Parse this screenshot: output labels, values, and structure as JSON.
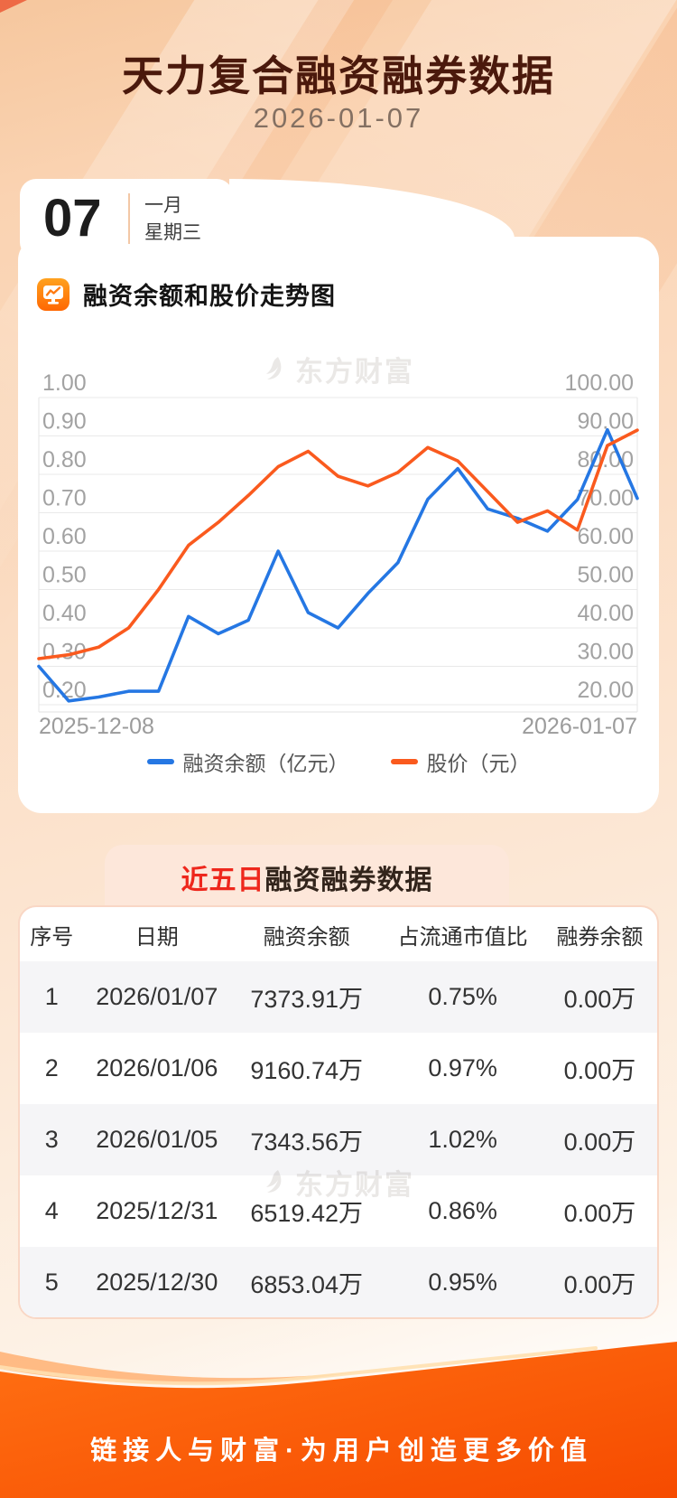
{
  "page": {
    "title": "天力复合融资融券数据",
    "date": "2026-01-07",
    "date_card": {
      "day": "07",
      "month": "一月",
      "weekday": "星期三"
    },
    "watermark": "东方财富",
    "footer": "链接人与财富·为用户创造更多价值"
  },
  "chart_section": {
    "title": "融资余额和股价走势图",
    "legend": [
      {
        "label": "融资余额（亿元）",
        "color": "#2577e3"
      },
      {
        "label": "股价（元）",
        "color": "#fa5a1e"
      }
    ]
  },
  "chart_data": {
    "type": "line",
    "x": [
      "2025-12-08",
      "2025-12-09",
      "2025-12-10",
      "2025-12-11",
      "2025-12-12",
      "2025-12-15",
      "2025-12-16",
      "2025-12-17",
      "2025-12-18",
      "2025-12-19",
      "2025-12-22",
      "2025-12-23",
      "2025-12-24",
      "2025-12-25",
      "2025-12-26",
      "2025-12-29",
      "2025-12-30",
      "2025-12-31",
      "2026-01-05",
      "2026-01-06",
      "2026-01-07"
    ],
    "x_axis_labels": [
      "2025-12-08",
      "2026-01-07"
    ],
    "series": [
      {
        "name": "融资余额（亿元）",
        "axis": "left",
        "color": "#2577e3",
        "values": [
          0.3,
          0.21,
          0.22,
          0.235,
          0.235,
          0.43,
          0.385,
          0.42,
          0.6,
          0.44,
          0.4,
          0.49,
          0.57,
          0.735,
          0.815,
          0.71,
          0.6853,
          0.6519,
          0.7344,
          0.9161,
          0.7374
        ]
      },
      {
        "name": "股价（元）",
        "axis": "right",
        "color": "#fa5a1e",
        "values": [
          32,
          33,
          35,
          40,
          50,
          61.5,
          67.5,
          74.5,
          82,
          86,
          79.5,
          77,
          80.5,
          87,
          83.5,
          75.5,
          67.5,
          70.5,
          65.5,
          87.5,
          91.5
        ]
      }
    ],
    "left_axis": {
      "min": 0.2,
      "max": 1.0,
      "ticks": [
        "1.00",
        "0.90",
        "0.80",
        "0.70",
        "0.60",
        "0.50",
        "0.40",
        "0.30",
        "0.20"
      ]
    },
    "right_axis": {
      "min": 20,
      "max": 100,
      "ticks": [
        "100.00",
        "90.00",
        "80.00",
        "70.00",
        "60.00",
        "50.00",
        "40.00",
        "30.00",
        "20.00"
      ]
    },
    "grid": true,
    "legend_position": "bottom",
    "title": "融资余额和股价走势图"
  },
  "table_section": {
    "title_highlight": "近五日",
    "title_rest": "融资融券数据",
    "columns": [
      "序号",
      "日期",
      "融资余额",
      "占流通市值比",
      "融券余额"
    ],
    "rows": [
      [
        "1",
        "2026/01/07",
        "7373.91万",
        "0.75%",
        "0.00万"
      ],
      [
        "2",
        "2026/01/06",
        "9160.74万",
        "0.97%",
        "0.00万"
      ],
      [
        "3",
        "2026/01/05",
        "7343.56万",
        "1.02%",
        "0.00万"
      ],
      [
        "4",
        "2025/12/31",
        "6519.42万",
        "0.86%",
        "0.00万"
      ],
      [
        "5",
        "2025/12/30",
        "6853.04万",
        "0.95%",
        "0.00万"
      ]
    ]
  },
  "colors": {
    "accent_blue": "#2577e3",
    "accent_orange": "#fa5a1e",
    "highlight_red": "#ee271c",
    "title_brown": "#4b190c",
    "footer_orange_light": "#ff7013",
    "footer_orange_dark": "#f64b00",
    "grid_gray": "#e9e9e9",
    "axis_label_gray": "#a2a2a2"
  }
}
